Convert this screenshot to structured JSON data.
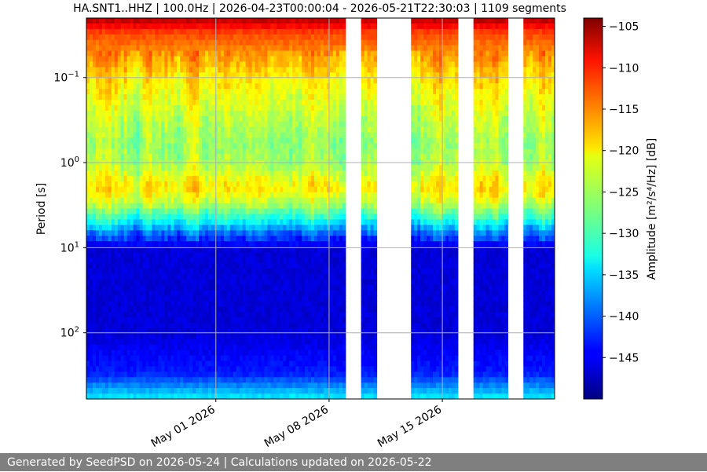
{
  "chart_data": {
    "type": "heatmap",
    "title": "HA.SNT1..HHZ | 100.0Hz | 2026-04-23T00:00:04 - 2026-05-21T22:30:03 | 1109 segments",
    "xlabel": "",
    "ylabel": "Period [s]",
    "x_range": [
      "2026-04-23",
      "2026-05-21T22:30:03"
    ],
    "x_ticks": [
      "May 01 2026",
      "May 08 2026",
      "May 15 2026"
    ],
    "y_scale": "log",
    "y_inverted": true,
    "y_range": [
      0.02,
      600
    ],
    "y_ticks": [
      {
        "label_base": "10",
        "label_exp": "−1",
        "value": 0.1
      },
      {
        "label_base": "10",
        "label_exp": "0",
        "value": 1
      },
      {
        "label_base": "10",
        "label_exp": "1",
        "value": 10
      },
      {
        "label_base": "10",
        "label_exp": "2",
        "value": 100
      }
    ],
    "grid": true,
    "data_gaps": [
      [
        "2026-05-09T00:00",
        "2026-05-10T00:00"
      ],
      [
        "2026-05-11T00:00",
        "2026-05-13T00:00"
      ],
      [
        "2026-05-16T00:00",
        "2026-05-17T00:00"
      ],
      [
        "2026-05-19T00:00",
        "2026-05-20T00:00"
      ]
    ],
    "colorbar": {
      "colormap": "jet",
      "label": "Amplitude [m²/s⁴/Hz] [dB]",
      "range": [
        -150,
        -104
      ],
      "ticks": [
        "−105",
        "−110",
        "−115",
        "−120",
        "−125",
        "−130",
        "−135",
        "−140",
        "−145"
      ]
    },
    "amplitude_profile_by_period": [
      {
        "period": 0.02,
        "db": -106
      },
      {
        "period": 0.03,
        "db": -113
      },
      {
        "period": 0.05,
        "db": -116
      },
      {
        "period": 0.1,
        "db": -120
      },
      {
        "period": 0.3,
        "db": -124
      },
      {
        "period": 0.6,
        "db": -126
      },
      {
        "period": 1,
        "db": -125
      },
      {
        "period": 2,
        "db": -120
      },
      {
        "period": 3,
        "db": -124
      },
      {
        "period": 5,
        "db": -133
      },
      {
        "period": 7,
        "db": -140
      },
      {
        "period": 10,
        "db": -146
      },
      {
        "period": 100,
        "db": -146
      },
      {
        "period": 300,
        "db": -143
      },
      {
        "period": 600,
        "db": -133
      }
    ]
  },
  "footer": {
    "text": "Generated by SeedPSD on 2026-05-24 | Calculations updated on 2026-05-22"
  }
}
